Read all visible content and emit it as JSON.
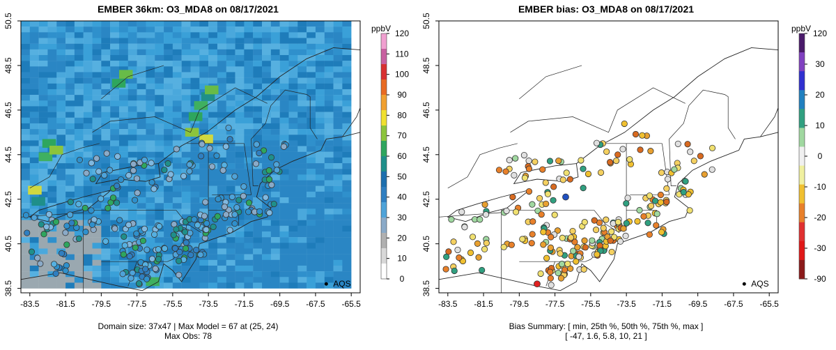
{
  "left": {
    "title": "EMBER 36km: O3_MDA8 on 08/17/2021",
    "footer_line1": "Domain size: 37x47 | Max Model = 67 at (25, 24)",
    "footer_line2": "Max Obs: 78",
    "legend_label": "AQS",
    "colorbar": {
      "unit": "ppbV",
      "ticks": [
        "0",
        "10",
        "20",
        "30",
        "40",
        "50",
        "60",
        "70",
        "80",
        "90",
        "100",
        "110",
        "120"
      ],
      "colors": [
        "#ffffff",
        "#d8d8d8",
        "#b0b0b0",
        "#8aaac8",
        "#4ea3d9",
        "#2f7fc1",
        "#1d6fae",
        "#1f8f8a",
        "#2ea65e",
        "#8cc43c",
        "#f0e030",
        "#f0a030",
        "#e86a22",
        "#d83030",
        "#c860a0",
        "#f0a0d0"
      ]
    }
  },
  "right": {
    "title": "EMBER bias: O3_MDA8 on 08/17/2021",
    "footer_line1": "Bias Summary: [ min, 25th %, 50th %, 75th %, max ]",
    "footer_line2": "[ -47,  1.6,   5.8,   10,   21 ]",
    "legend_label": "AQS",
    "colorbar": {
      "unit": "ppbV",
      "ticks": [
        "120",
        "30",
        "20",
        "10",
        "0",
        "-10",
        "-20",
        "-30",
        "-90"
      ],
      "colors": [
        "#8b1a1a",
        "#e01818",
        "#e03030",
        "#e8802a",
        "#f0c030",
        "#f0f0a0",
        "#f0f0f0",
        "#a0d8a0",
        "#30a080",
        "#2080c0",
        "#3030d0",
        "#8040c0",
        "#4a1a6a"
      ]
    }
  },
  "map": {
    "x_ticks": [
      "-83.5",
      "-81.5",
      "-79.5",
      "-77.5",
      "-75.5",
      "-73.5",
      "-71.5",
      "-69.5",
      "-67.5",
      "-65.5"
    ],
    "y_ticks": [
      "38.5",
      "40.5",
      "42.5",
      "44.5",
      "46.5",
      "48.5",
      "50.5"
    ],
    "x_range": [
      -84.0,
      -65.0
    ],
    "y_range": [
      38.3,
      50.5
    ],
    "model_grid_colors": [
      "#3aa0d8",
      "#2f90cc",
      "#4aa8dc",
      "#2a86c4",
      "#1e7cba",
      "#56b0e0"
    ],
    "hotspot_colors": [
      "#2ea65e",
      "#3fb060",
      "#8cc43c",
      "#d0d840",
      "#1f8f8a",
      "#68bb48"
    ],
    "grey_area_color": "#9aa8b0",
    "site_colors_left": [
      "#4ea3d9",
      "#56b0e0",
      "#2f90cc",
      "#7fb8e0",
      "#2f7fc1",
      "#8aaac8",
      "#1f8f8a",
      "#2ea65e"
    ],
    "site_colors_right": [
      "#f0c030",
      "#e8a030",
      "#e8802a",
      "#f0e070",
      "#e0e0e0",
      "#a0d8a0",
      "#30a080",
      "#d86a20",
      "#f4d060"
    ]
  }
}
